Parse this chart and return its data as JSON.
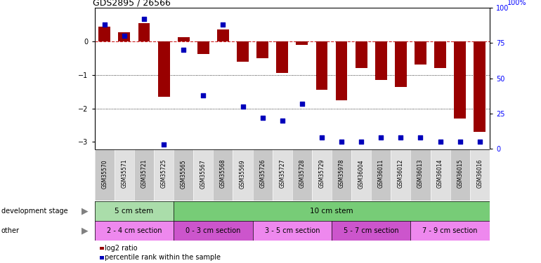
{
  "title": "GDS2895 / 26566",
  "samples": [
    "GSM35570",
    "GSM35571",
    "GSM35721",
    "GSM35725",
    "GSM35565",
    "GSM35567",
    "GSM35568",
    "GSM35569",
    "GSM35726",
    "GSM35727",
    "GSM35728",
    "GSM35729",
    "GSM35978",
    "GSM36004",
    "GSM36011",
    "GSM36012",
    "GSM36013",
    "GSM36014",
    "GSM36015",
    "GSM36016"
  ],
  "log2_ratio": [
    0.45,
    0.28,
    0.55,
    -1.65,
    0.12,
    -0.38,
    0.35,
    -0.6,
    -0.5,
    -0.95,
    -0.1,
    -1.45,
    -1.75,
    -0.8,
    -1.15,
    -1.35,
    -0.7,
    -0.8,
    -2.3,
    -2.7
  ],
  "percentile": [
    88,
    80,
    92,
    3,
    70,
    38,
    88,
    30,
    22,
    20,
    32,
    8,
    5,
    5,
    8,
    8,
    8,
    5,
    5,
    5
  ],
  "dev_stage_groups": [
    {
      "label": "5 cm stem",
      "start": 0,
      "end": 4,
      "color": "#aaddaa"
    },
    {
      "label": "10 cm stem",
      "start": 4,
      "end": 20,
      "color": "#77cc77"
    }
  ],
  "other_groups": [
    {
      "label": "2 - 4 cm section",
      "start": 0,
      "end": 4,
      "color": "#ee88ee"
    },
    {
      "label": "0 - 3 cm section",
      "start": 4,
      "end": 8,
      "color": "#cc55cc"
    },
    {
      "label": "3 - 5 cm section",
      "start": 8,
      "end": 12,
      "color": "#ee88ee"
    },
    {
      "label": "5 - 7 cm section",
      "start": 12,
      "end": 16,
      "color": "#cc55cc"
    },
    {
      "label": "7 - 9 cm section",
      "start": 16,
      "end": 20,
      "color": "#ee88ee"
    }
  ],
  "bar_color": "#990000",
  "dot_color": "#0000BB",
  "dashed_color": "#CC2222",
  "ylim_left": [
    -3.2,
    1.0
  ],
  "ylim_right": [
    0,
    100
  ],
  "yticks_left": [
    0,
    -1,
    -2,
    -3
  ],
  "yticks_right": [
    0,
    25,
    50,
    75,
    100
  ],
  "legend_items": [
    {
      "label": "log2 ratio",
      "color": "#990000"
    },
    {
      "label": "percentile rank within the sample",
      "color": "#0000BB"
    }
  ]
}
